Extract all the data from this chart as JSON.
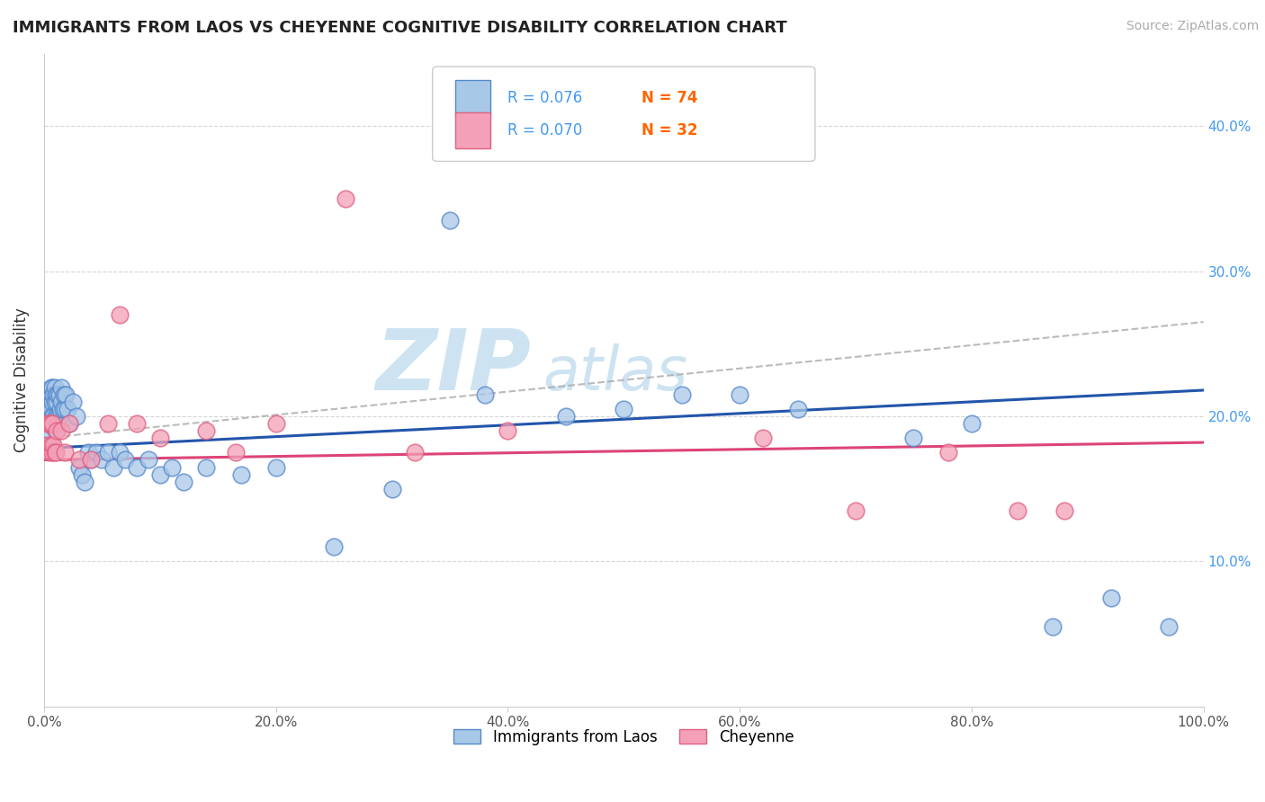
{
  "title": "IMMIGRANTS FROM LAOS VS CHEYENNE COGNITIVE DISABILITY CORRELATION CHART",
  "source": "Source: ZipAtlas.com",
  "ylabel": "Cognitive Disability",
  "legend_label1": "Immigrants from Laos",
  "legend_label2": "Cheyenne",
  "r1": 0.076,
  "n1": 74,
  "r2": 0.07,
  "n2": 32,
  "color1_face": "#a8c8e8",
  "color1_edge": "#5588cc",
  "color2_face": "#f4a0b8",
  "color2_edge": "#e06080",
  "line_color1": "#2255aa",
  "line_color2": "#dd4477",
  "dash_color": "#aaaaaa",
  "background": "#ffffff",
  "grid_color": "#cccccc",
  "tick_color": "#4499ee",
  "xmin": 0.0,
  "xmax": 1.0,
  "ymin": 0.0,
  "ymax": 0.45,
  "xticks": [
    0.0,
    0.2,
    0.4,
    0.6,
    0.8,
    1.0
  ],
  "yticks": [
    0.1,
    0.2,
    0.3,
    0.4
  ],
  "xtick_labels": [
    "0.0%",
    "20.0%",
    "40.0%",
    "60.0%",
    "80.0%",
    "100.0%"
  ],
  "ytick_labels_right": [
    "10.0%",
    "20.0%",
    "30.0%",
    "40.0%"
  ],
  "blue_line_x0": 0.0,
  "blue_line_y0": 0.178,
  "blue_line_x1": 1.0,
  "blue_line_y1": 0.218,
  "pink_line_x0": 0.0,
  "pink_line_y0": 0.17,
  "pink_line_x1": 1.0,
  "pink_line_y1": 0.182,
  "dash_line_x0": 0.0,
  "dash_line_y0": 0.185,
  "dash_line_x1": 1.0,
  "dash_line_y1": 0.265,
  "watermark_text": "ZIPAtlas",
  "watermark_color": "#c5dff0",
  "blue_x": [
    0.002,
    0.003,
    0.003,
    0.004,
    0.004,
    0.004,
    0.005,
    0.005,
    0.005,
    0.006,
    0.006,
    0.006,
    0.006,
    0.007,
    0.007,
    0.007,
    0.008,
    0.008,
    0.009,
    0.009,
    0.009,
    0.01,
    0.01,
    0.01,
    0.011,
    0.011,
    0.012,
    0.012,
    0.013,
    0.013,
    0.014,
    0.015,
    0.015,
    0.016,
    0.017,
    0.018,
    0.019,
    0.02,
    0.022,
    0.025,
    0.028,
    0.03,
    0.033,
    0.035,
    0.038,
    0.04,
    0.045,
    0.05,
    0.055,
    0.06,
    0.065,
    0.07,
    0.08,
    0.09,
    0.1,
    0.11,
    0.12,
    0.14,
    0.17,
    0.2,
    0.25,
    0.3,
    0.35,
    0.38,
    0.45,
    0.5,
    0.55,
    0.6,
    0.65,
    0.75,
    0.8,
    0.87,
    0.92,
    0.97
  ],
  "blue_y": [
    0.195,
    0.205,
    0.215,
    0.195,
    0.2,
    0.21,
    0.19,
    0.2,
    0.215,
    0.195,
    0.205,
    0.215,
    0.22,
    0.2,
    0.21,
    0.22,
    0.2,
    0.215,
    0.195,
    0.21,
    0.22,
    0.19,
    0.2,
    0.215,
    0.195,
    0.21,
    0.2,
    0.215,
    0.2,
    0.215,
    0.205,
    0.21,
    0.22,
    0.205,
    0.215,
    0.205,
    0.215,
    0.205,
    0.195,
    0.21,
    0.2,
    0.165,
    0.16,
    0.155,
    0.175,
    0.17,
    0.175,
    0.17,
    0.175,
    0.165,
    0.175,
    0.17,
    0.165,
    0.17,
    0.16,
    0.165,
    0.155,
    0.165,
    0.16,
    0.165,
    0.11,
    0.15,
    0.335,
    0.215,
    0.2,
    0.205,
    0.215,
    0.215,
    0.205,
    0.185,
    0.195,
    0.055,
    0.075,
    0.055
  ],
  "pink_x": [
    0.003,
    0.003,
    0.004,
    0.005,
    0.006,
    0.006,
    0.007,
    0.007,
    0.008,
    0.009,
    0.01,
    0.011,
    0.015,
    0.018,
    0.022,
    0.03,
    0.04,
    0.055,
    0.065,
    0.08,
    0.1,
    0.14,
    0.165,
    0.2,
    0.26,
    0.32,
    0.4,
    0.62,
    0.7,
    0.78,
    0.84,
    0.88
  ],
  "pink_y": [
    0.195,
    0.18,
    0.195,
    0.175,
    0.18,
    0.195,
    0.175,
    0.195,
    0.18,
    0.175,
    0.175,
    0.19,
    0.19,
    0.175,
    0.195,
    0.17,
    0.17,
    0.195,
    0.27,
    0.195,
    0.185,
    0.19,
    0.175,
    0.195,
    0.35,
    0.175,
    0.19,
    0.185,
    0.135,
    0.175,
    0.135,
    0.135
  ]
}
